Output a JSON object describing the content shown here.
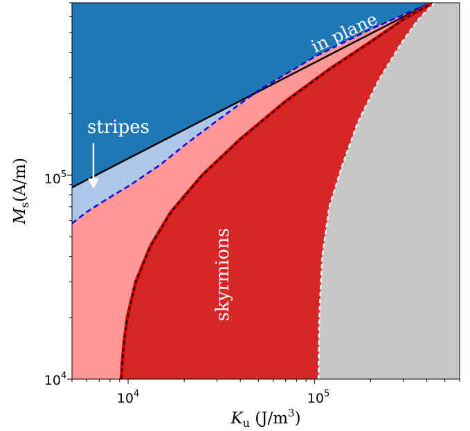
{
  "chart_data": {
    "type": "area",
    "title": "",
    "xlabel_main": "K",
    "xlabel_sub": "u",
    "xlabel_unit": "(J/m",
    "xlabel_sup": "3",
    "xlabel_close": ")",
    "ylabel_main": "M",
    "ylabel_sub": "s",
    "ylabel_unit": "(A/m)",
    "xscale": "log",
    "yscale": "log",
    "xlim": [
      5000,
      600000
    ],
    "ylim": [
      10000,
      700000
    ],
    "x_ticks": [
      {
        "value": 10000,
        "base": "10",
        "exp": "4"
      },
      {
        "value": 100000,
        "base": "10",
        "exp": "5"
      }
    ],
    "y_ticks": [
      {
        "value": 10000,
        "base": "10",
        "exp": "4"
      },
      {
        "value": 100000,
        "base": "10",
        "exp": "5"
      }
    ],
    "grid": false,
    "legend": "none",
    "regions": [
      {
        "name": "in plane",
        "color": "#1f77b4"
      },
      {
        "name": "stripes",
        "color": "#aec7e8"
      },
      {
        "name": "light-red",
        "color": "#ff9896"
      },
      {
        "name": "skyrmions",
        "color": "#d62728"
      },
      {
        "name": "gray",
        "color": "#c7c7c7"
      }
    ],
    "boundaries": {
      "in_plane_line": {
        "color": "#000000",
        "style": "solid",
        "points": [
          [
            5000,
            87000
          ],
          [
            420000,
            700000
          ]
        ]
      },
      "stripes_line": {
        "color": "#0000ee",
        "style": "dashed",
        "points": [
          [
            5000,
            58000
          ],
          [
            6000,
            66000
          ],
          [
            8000,
            78000
          ],
          [
            10000,
            88000
          ],
          [
            15000,
            113000
          ],
          [
            20000,
            140000
          ],
          [
            30000,
            185000
          ],
          [
            50000,
            260000
          ],
          [
            100000,
            380000
          ],
          [
            200000,
            520000
          ],
          [
            420000,
            700000
          ]
        ]
      },
      "skyrmion_boundary": {
        "color": "#dd0000",
        "style": "solid",
        "points": [
          [
            9200,
            10000
          ],
          [
            9300,
            12000
          ],
          [
            9500,
            15000
          ],
          [
            9900,
            20000
          ],
          [
            11000,
            30000
          ],
          [
            13200,
            45000
          ],
          [
            17000,
            66000
          ],
          [
            25000,
            100000
          ],
          [
            40000,
            150000
          ],
          [
            70000,
            230000
          ],
          [
            120000,
            330000
          ],
          [
            200000,
            450000
          ],
          [
            300000,
            580000
          ],
          [
            430000,
            700000
          ]
        ]
      },
      "gray_boundary": {
        "color": "#ffffff",
        "style": "dashed",
        "points": [
          [
            105000,
            10000
          ],
          [
            106000,
            20000
          ],
          [
            110000,
            40000
          ],
          [
            120000,
            70000
          ],
          [
            140000,
            110000
          ],
          [
            170000,
            180000
          ],
          [
            220000,
            290000
          ],
          [
            290000,
            440000
          ],
          [
            360000,
            580000
          ],
          [
            440000,
            700000
          ]
        ]
      }
    },
    "annotations": {
      "in_plane": "in plane",
      "stripes": "stripes",
      "skyrmions": "skyrmions"
    }
  }
}
